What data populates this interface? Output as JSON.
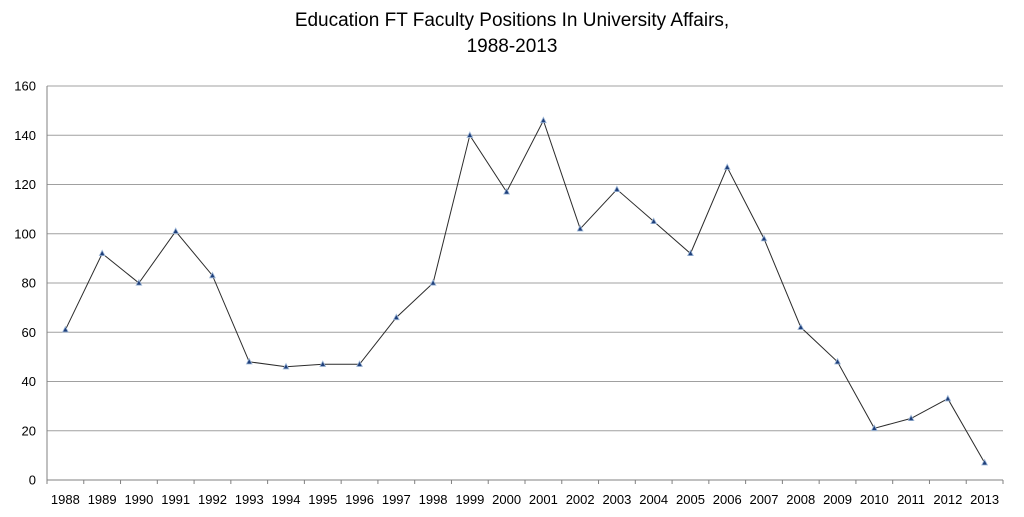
{
  "chart_data": {
    "type": "line",
    "title_lines": [
      "Education FT Faculty Positions In University Affairs,",
      "1988-2013"
    ],
    "xlabel": "",
    "ylabel": "",
    "ylim": [
      0,
      160
    ],
    "yticks": [
      0,
      20,
      40,
      60,
      80,
      100,
      120,
      140,
      160
    ],
    "grid": true,
    "legend": "none",
    "categories": [
      "1988",
      "1989",
      "1990",
      "1991",
      "1992",
      "1993",
      "1994",
      "1995",
      "1996",
      "1997",
      "1998",
      "1999",
      "2000",
      "2001",
      "2002",
      "2003",
      "2004",
      "2005",
      "2006",
      "2007",
      "2008",
      "2009",
      "2010",
      "2011",
      "2012",
      "2013"
    ],
    "series": [
      {
        "values": [
          61,
          92,
          80,
          101,
          83,
          48,
          46,
          47,
          47,
          66,
          80,
          140,
          117,
          146,
          102,
          118,
          105,
          92,
          127,
          98,
          62,
          48,
          21,
          25,
          33,
          7
        ],
        "color": "#2b2b2b",
        "marker_color": "#1f3f7a"
      }
    ]
  }
}
